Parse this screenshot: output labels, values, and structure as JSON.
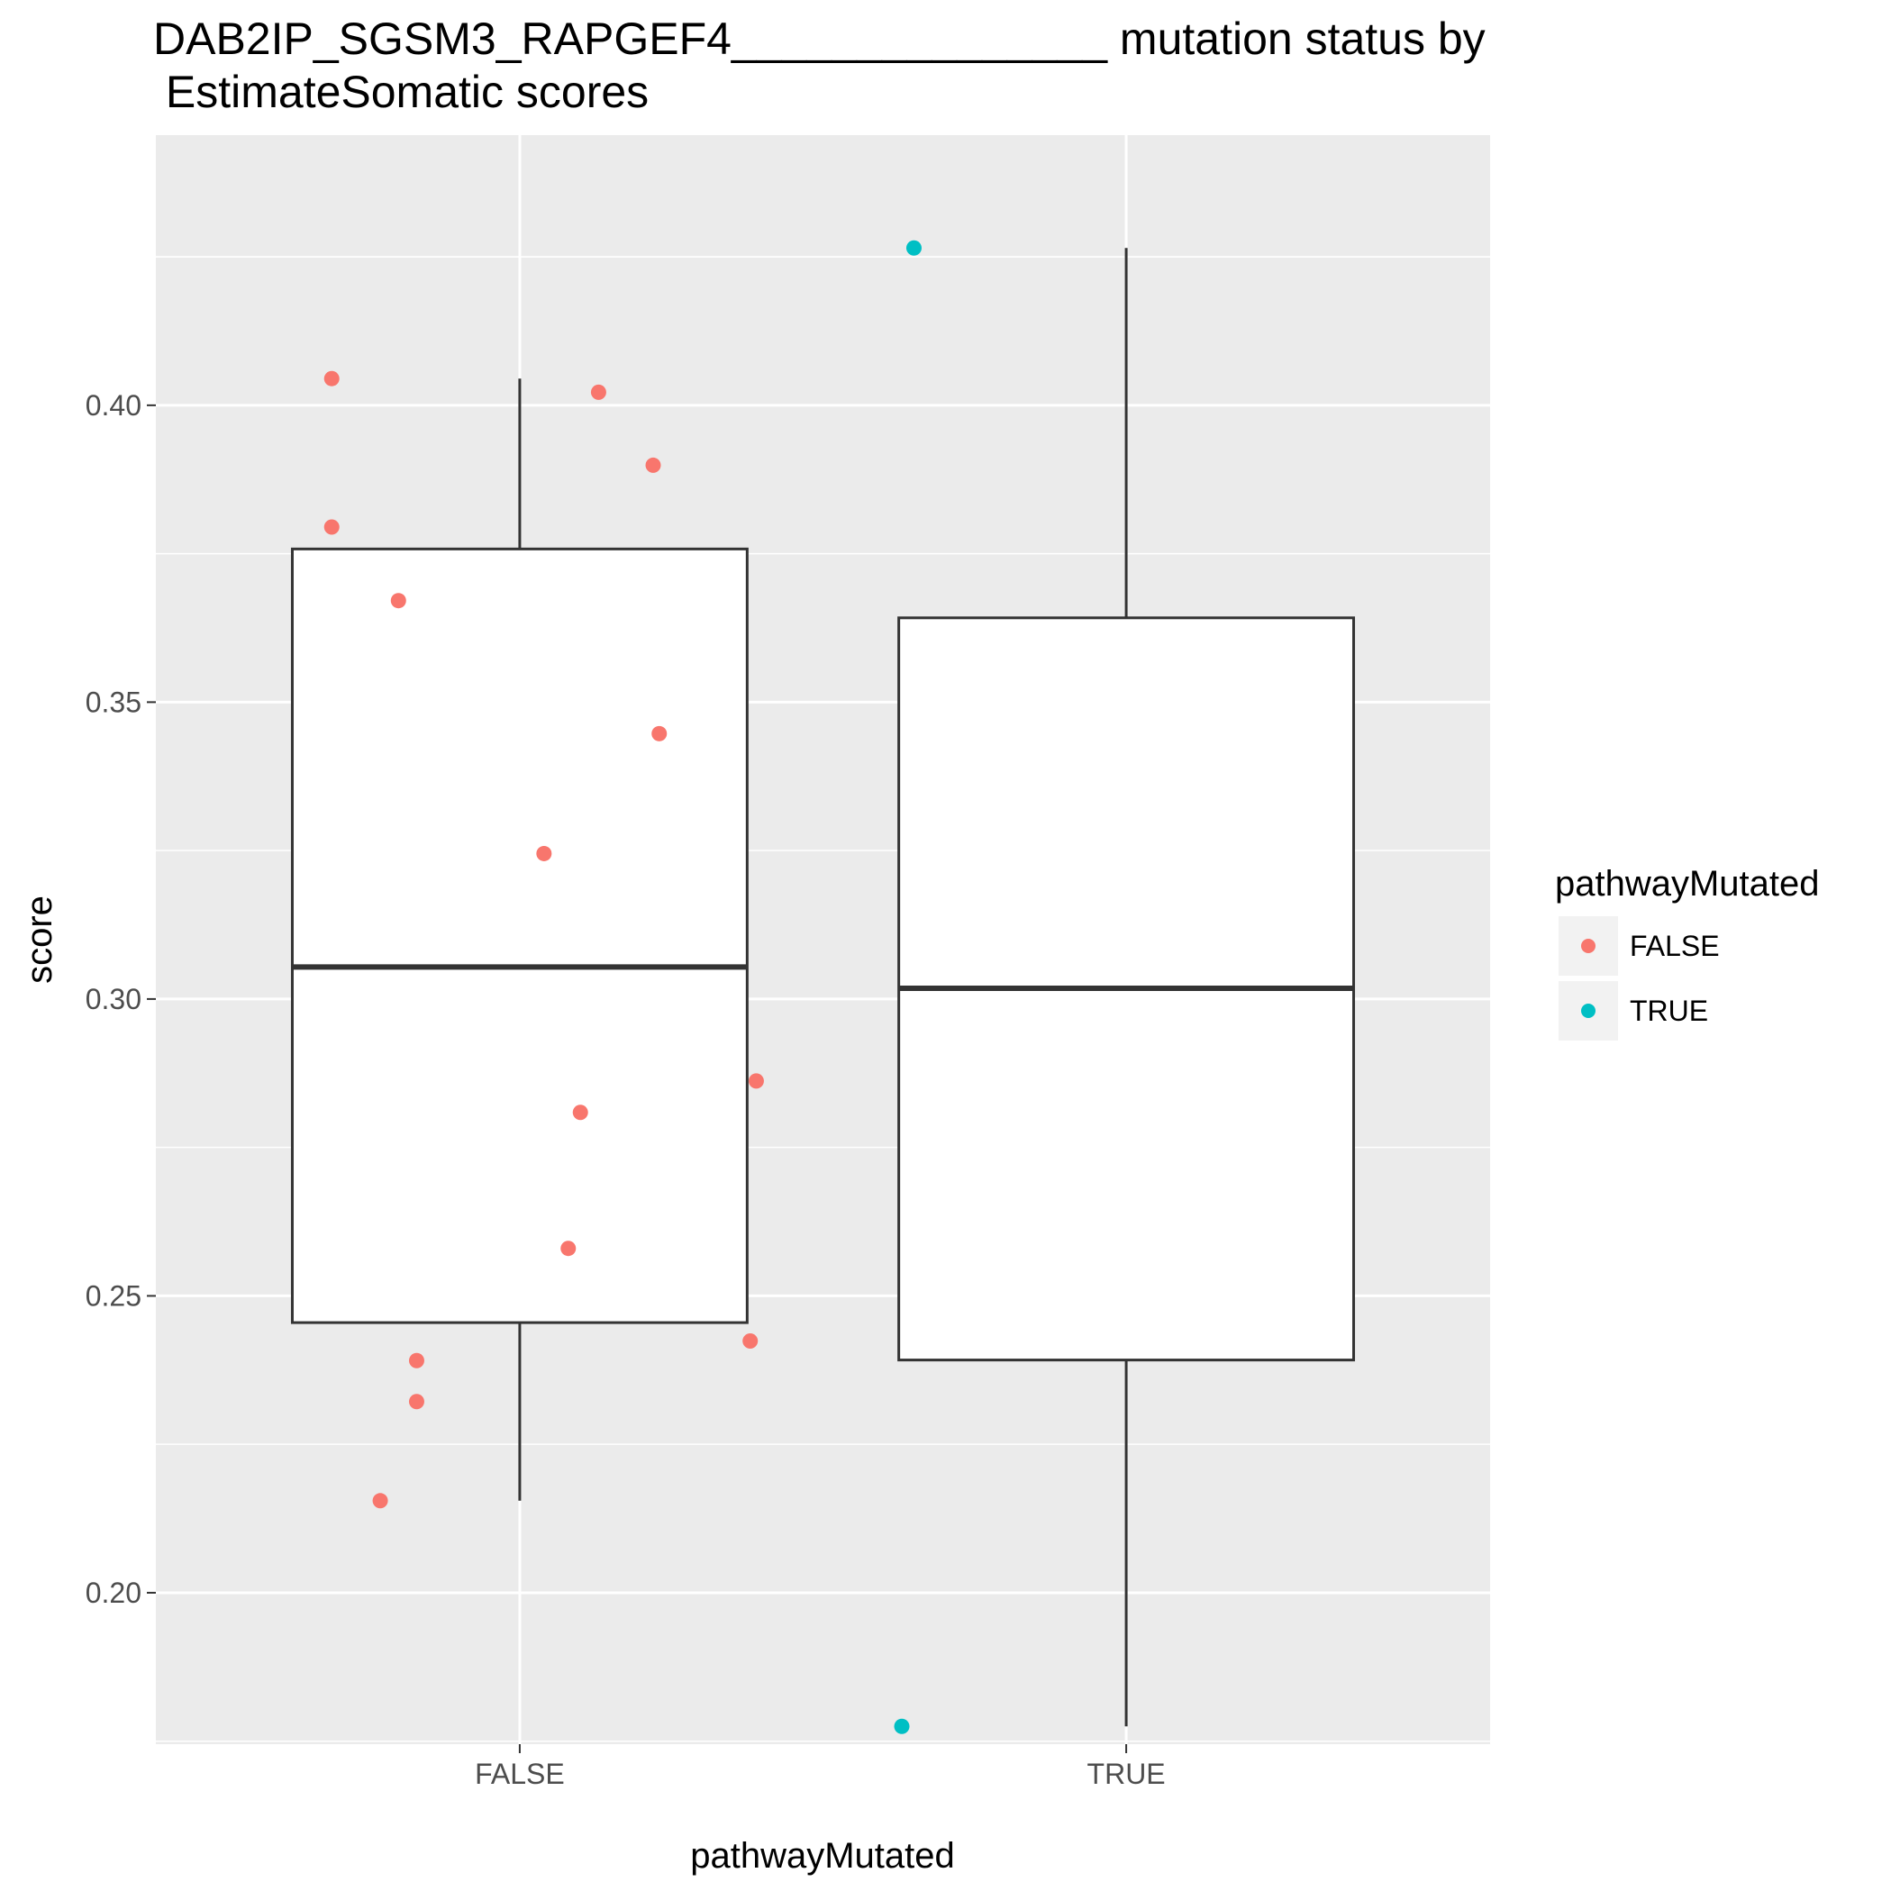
{
  "chart_data": {
    "type": "box",
    "title_line1": "DAB2IP_SGSM3_RAPGEF4_______________ mutation status by",
    "title_line2": " EstimateSomatic scores",
    "xlabel": "pathwayMutated",
    "ylabel": "score",
    "categories": [
      "FALSE",
      "TRUE"
    ],
    "ylim": [
      0.1745,
      0.4455
    ],
    "yticks": [
      0.2,
      0.25,
      0.3,
      0.35,
      0.4
    ],
    "ytick_labels": [
      "0.20",
      "0.25",
      "0.30",
      "0.35",
      "0.40"
    ],
    "grid": true,
    "legend": {
      "title": "pathwayMutated",
      "position": "right",
      "entries": [
        {
          "label": "FALSE",
          "color": "#F8766D"
        },
        {
          "label": "TRUE",
          "color": "#00BFC4"
        }
      ]
    },
    "boxes": [
      {
        "category": "FALSE",
        "whisker_low": 0.2155,
        "q1": 0.2455,
        "median": 0.3054,
        "q3": 0.3758,
        "whisker_high": 0.4045
      },
      {
        "category": "TRUE",
        "whisker_low": 0.1775,
        "q1": 0.2392,
        "median": 0.3018,
        "q3": 0.3642,
        "whisker_high": 0.4265
      }
    ],
    "points": [
      {
        "category": "FALSE",
        "jitter": -0.31,
        "y": 0.4045
      },
      {
        "category": "FALSE",
        "jitter": 0.13,
        "y": 0.4022
      },
      {
        "category": "FALSE",
        "jitter": 0.22,
        "y": 0.3899
      },
      {
        "category": "FALSE",
        "jitter": -0.31,
        "y": 0.3795
      },
      {
        "category": "FALSE",
        "jitter": -0.2,
        "y": 0.3671
      },
      {
        "category": "FALSE",
        "jitter": 0.23,
        "y": 0.3447
      },
      {
        "category": "FALSE",
        "jitter": 0.04,
        "y": 0.3245
      },
      {
        "category": "FALSE",
        "jitter": 0.39,
        "y": 0.2862
      },
      {
        "category": "FALSE",
        "jitter": 0.1,
        "y": 0.2809
      },
      {
        "category": "FALSE",
        "jitter": 0.08,
        "y": 0.258
      },
      {
        "category": "FALSE",
        "jitter": 0.38,
        "y": 0.2424
      },
      {
        "category": "FALSE",
        "jitter": -0.17,
        "y": 0.2391
      },
      {
        "category": "FALSE",
        "jitter": -0.17,
        "y": 0.2322
      },
      {
        "category": "FALSE",
        "jitter": -0.23,
        "y": 0.2155
      },
      {
        "category": "TRUE",
        "jitter": -0.35,
        "y": 0.4265
      },
      {
        "category": "TRUE",
        "jitter": -0.37,
        "y": 0.1775
      }
    ]
  }
}
